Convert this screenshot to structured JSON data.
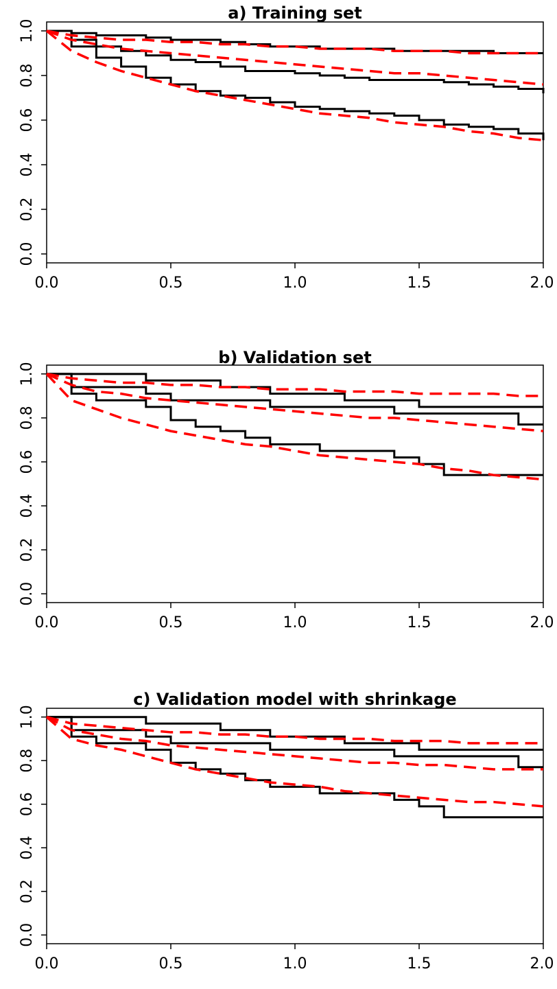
{
  "chart_data": [
    {
      "type": "line",
      "title": "a) Training set",
      "x": [
        0,
        0.1,
        0.2,
        0.3,
        0.4,
        0.5,
        0.6,
        0.7,
        0.8,
        0.9,
        1.0,
        1.1,
        1.2,
        1.3,
        1.4,
        1.5,
        1.6,
        1.7,
        1.8,
        1.9,
        2.0
      ],
      "xlim": [
        0,
        2
      ],
      "ylim": [
        -0.04,
        1.04
      ],
      "xticks": [
        {
          "value": 0,
          "label": "0.0"
        },
        {
          "value": 0.5,
          "label": "0.5"
        },
        {
          "value": 1,
          "label": "1.0"
        },
        {
          "value": 1.5,
          "label": "1.5"
        },
        {
          "value": 2,
          "label": "2.0"
        }
      ],
      "yticks": [
        {
          "value": 0,
          "label": "0.0"
        },
        {
          "value": 0.2,
          "label": "0.2"
        },
        {
          "value": 0.4,
          "label": "0.4"
        },
        {
          "value": 0.6,
          "label": "0.6"
        },
        {
          "value": 0.8,
          "label": "0.8"
        },
        {
          "value": 1,
          "label": "1.0"
        }
      ],
      "series": [
        {
          "color": "#000000",
          "drawstyle": "steps-post",
          "values": [
            1,
            0.99,
            0.98,
            0.98,
            0.97,
            0.96,
            0.96,
            0.95,
            0.94,
            0.93,
            0.93,
            0.92,
            0.92,
            0.92,
            0.91,
            0.91,
            0.91,
            0.91,
            0.9,
            0.9,
            0.9
          ]
        },
        {
          "color": "#000000",
          "drawstyle": "steps-post",
          "values": [
            1,
            0.96,
            0.93,
            0.91,
            0.89,
            0.87,
            0.86,
            0.84,
            0.82,
            0.82,
            0.81,
            0.8,
            0.79,
            0.78,
            0.78,
            0.78,
            0.77,
            0.76,
            0.75,
            0.74,
            0.72
          ]
        },
        {
          "color": "#000000",
          "drawstyle": "steps-post",
          "values": [
            1,
            0.93,
            0.88,
            0.84,
            0.79,
            0.76,
            0.73,
            0.71,
            0.7,
            0.68,
            0.66,
            0.65,
            0.64,
            0.63,
            0.62,
            0.6,
            0.58,
            0.57,
            0.56,
            0.54,
            0.51
          ]
        },
        {
          "color": "#ff0000",
          "linestyle": "dashed",
          "values": [
            1,
            0.98,
            0.97,
            0.96,
            0.96,
            0.95,
            0.95,
            0.94,
            0.94,
            0.93,
            0.93,
            0.92,
            0.92,
            0.92,
            0.91,
            0.91,
            0.91,
            0.9,
            0.9,
            0.9,
            0.9
          ]
        },
        {
          "color": "#ff0000",
          "linestyle": "dashed",
          "values": [
            1,
            0.96,
            0.94,
            0.92,
            0.91,
            0.9,
            0.89,
            0.88,
            0.87,
            0.86,
            0.85,
            0.84,
            0.83,
            0.82,
            0.81,
            0.81,
            0.8,
            0.79,
            0.78,
            0.77,
            0.76
          ]
        },
        {
          "color": "#ff0000",
          "linestyle": "dashed",
          "values": [
            1,
            0.91,
            0.86,
            0.82,
            0.79,
            0.76,
            0.73,
            0.71,
            0.69,
            0.67,
            0.65,
            0.63,
            0.62,
            0.61,
            0.59,
            0.58,
            0.57,
            0.55,
            0.54,
            0.52,
            0.51
          ]
        }
      ]
    },
    {
      "type": "line",
      "title": "b) Validation set",
      "x": [
        0,
        0.1,
        0.2,
        0.3,
        0.4,
        0.5,
        0.6,
        0.7,
        0.8,
        0.9,
        1.0,
        1.1,
        1.2,
        1.3,
        1.4,
        1.5,
        1.6,
        1.7,
        1.8,
        1.9,
        2.0
      ],
      "xlim": [
        0,
        2
      ],
      "ylim": [
        -0.04,
        1.04
      ],
      "xticks": [
        {
          "value": 0,
          "label": "0.0"
        },
        {
          "value": 0.5,
          "label": "0.5"
        },
        {
          "value": 1,
          "label": "1.0"
        },
        {
          "value": 1.5,
          "label": "1.5"
        },
        {
          "value": 2,
          "label": "2.0"
        }
      ],
      "yticks": [
        {
          "value": 0,
          "label": "0.0"
        },
        {
          "value": 0.2,
          "label": "0.2"
        },
        {
          "value": 0.4,
          "label": "0.4"
        },
        {
          "value": 0.6,
          "label": "0.6"
        },
        {
          "value": 0.8,
          "label": "0.8"
        },
        {
          "value": 1,
          "label": "1.0"
        }
      ],
      "series": [
        {
          "color": "#000000",
          "drawstyle": "steps-post",
          "values": [
            1,
            1,
            1,
            1,
            0.97,
            0.97,
            0.97,
            0.94,
            0.94,
            0.91,
            0.91,
            0.91,
            0.88,
            0.88,
            0.88,
            0.85,
            0.85,
            0.85,
            0.85,
            0.85,
            0.85
          ]
        },
        {
          "color": "#000000",
          "drawstyle": "steps-post",
          "values": [
            1,
            0.94,
            0.94,
            0.94,
            0.91,
            0.88,
            0.88,
            0.88,
            0.88,
            0.85,
            0.85,
            0.85,
            0.85,
            0.85,
            0.82,
            0.82,
            0.82,
            0.82,
            0.82,
            0.77,
            0.77
          ]
        },
        {
          "color": "#000000",
          "drawstyle": "steps-post",
          "values": [
            1,
            0.91,
            0.88,
            0.88,
            0.85,
            0.79,
            0.76,
            0.74,
            0.71,
            0.68,
            0.68,
            0.65,
            0.65,
            0.65,
            0.62,
            0.59,
            0.54,
            0.54,
            0.54,
            0.54,
            0.54
          ]
        },
        {
          "color": "#ff0000",
          "linestyle": "dashed",
          "values": [
            1,
            0.98,
            0.97,
            0.96,
            0.96,
            0.95,
            0.95,
            0.94,
            0.94,
            0.93,
            0.93,
            0.93,
            0.92,
            0.92,
            0.92,
            0.91,
            0.91,
            0.91,
            0.91,
            0.9,
            0.9
          ]
        },
        {
          "color": "#ff0000",
          "linestyle": "dashed",
          "values": [
            1,
            0.95,
            0.92,
            0.91,
            0.89,
            0.88,
            0.87,
            0.86,
            0.85,
            0.84,
            0.83,
            0.82,
            0.81,
            0.8,
            0.8,
            0.79,
            0.78,
            0.77,
            0.76,
            0.75,
            0.74
          ]
        },
        {
          "color": "#ff0000",
          "linestyle": "dashed",
          "values": [
            1,
            0.88,
            0.84,
            0.8,
            0.77,
            0.74,
            0.72,
            0.7,
            0.68,
            0.67,
            0.65,
            0.63,
            0.62,
            0.61,
            0.6,
            0.59,
            0.57,
            0.56,
            0.54,
            0.53,
            0.52
          ]
        }
      ]
    },
    {
      "type": "line",
      "title": "c) Validation model with shrinkage",
      "x": [
        0,
        0.1,
        0.2,
        0.3,
        0.4,
        0.5,
        0.6,
        0.7,
        0.8,
        0.9,
        1.0,
        1.1,
        1.2,
        1.3,
        1.4,
        1.5,
        1.6,
        1.7,
        1.8,
        1.9,
        2.0
      ],
      "xlim": [
        0,
        2
      ],
      "ylim": [
        -0.04,
        1.04
      ],
      "xticks": [
        {
          "value": 0,
          "label": "0.0"
        },
        {
          "value": 0.5,
          "label": "0.5"
        },
        {
          "value": 1,
          "label": "1.0"
        },
        {
          "value": 1.5,
          "label": "1.5"
        },
        {
          "value": 2,
          "label": "2.0"
        }
      ],
      "yticks": [
        {
          "value": 0,
          "label": "0.0"
        },
        {
          "value": 0.2,
          "label": "0.2"
        },
        {
          "value": 0.4,
          "label": "0.4"
        },
        {
          "value": 0.6,
          "label": "0.6"
        },
        {
          "value": 0.8,
          "label": "0.8"
        },
        {
          "value": 1,
          "label": "1.0"
        }
      ],
      "series": [
        {
          "color": "#000000",
          "drawstyle": "steps-post",
          "values": [
            1,
            1,
            1,
            1,
            0.97,
            0.97,
            0.97,
            0.94,
            0.94,
            0.91,
            0.91,
            0.91,
            0.88,
            0.88,
            0.88,
            0.85,
            0.85,
            0.85,
            0.85,
            0.85,
            0.85
          ]
        },
        {
          "color": "#000000",
          "drawstyle": "steps-post",
          "values": [
            1,
            0.94,
            0.94,
            0.94,
            0.91,
            0.88,
            0.88,
            0.88,
            0.88,
            0.85,
            0.85,
            0.85,
            0.85,
            0.85,
            0.82,
            0.82,
            0.82,
            0.82,
            0.82,
            0.77,
            0.77
          ]
        },
        {
          "color": "#000000",
          "drawstyle": "steps-post",
          "values": [
            1,
            0.91,
            0.88,
            0.88,
            0.85,
            0.79,
            0.76,
            0.74,
            0.71,
            0.68,
            0.68,
            0.65,
            0.65,
            0.65,
            0.62,
            0.59,
            0.54,
            0.54,
            0.54,
            0.54,
            0.54
          ]
        },
        {
          "color": "#ff0000",
          "linestyle": "dashed",
          "values": [
            1,
            0.97,
            0.96,
            0.95,
            0.94,
            0.93,
            0.93,
            0.92,
            0.92,
            0.91,
            0.91,
            0.9,
            0.9,
            0.9,
            0.89,
            0.89,
            0.89,
            0.88,
            0.88,
            0.88,
            0.88
          ]
        },
        {
          "color": "#ff0000",
          "linestyle": "dashed",
          "values": [
            1,
            0.94,
            0.92,
            0.9,
            0.89,
            0.87,
            0.86,
            0.85,
            0.84,
            0.83,
            0.82,
            0.81,
            0.8,
            0.79,
            0.79,
            0.78,
            0.78,
            0.77,
            0.76,
            0.76,
            0.76
          ]
        },
        {
          "color": "#ff0000",
          "linestyle": "dashed",
          "values": [
            1,
            0.9,
            0.87,
            0.85,
            0.82,
            0.79,
            0.76,
            0.74,
            0.72,
            0.7,
            0.69,
            0.68,
            0.66,
            0.65,
            0.64,
            0.63,
            0.62,
            0.61,
            0.61,
            0.6,
            0.59
          ]
        }
      ]
    }
  ]
}
